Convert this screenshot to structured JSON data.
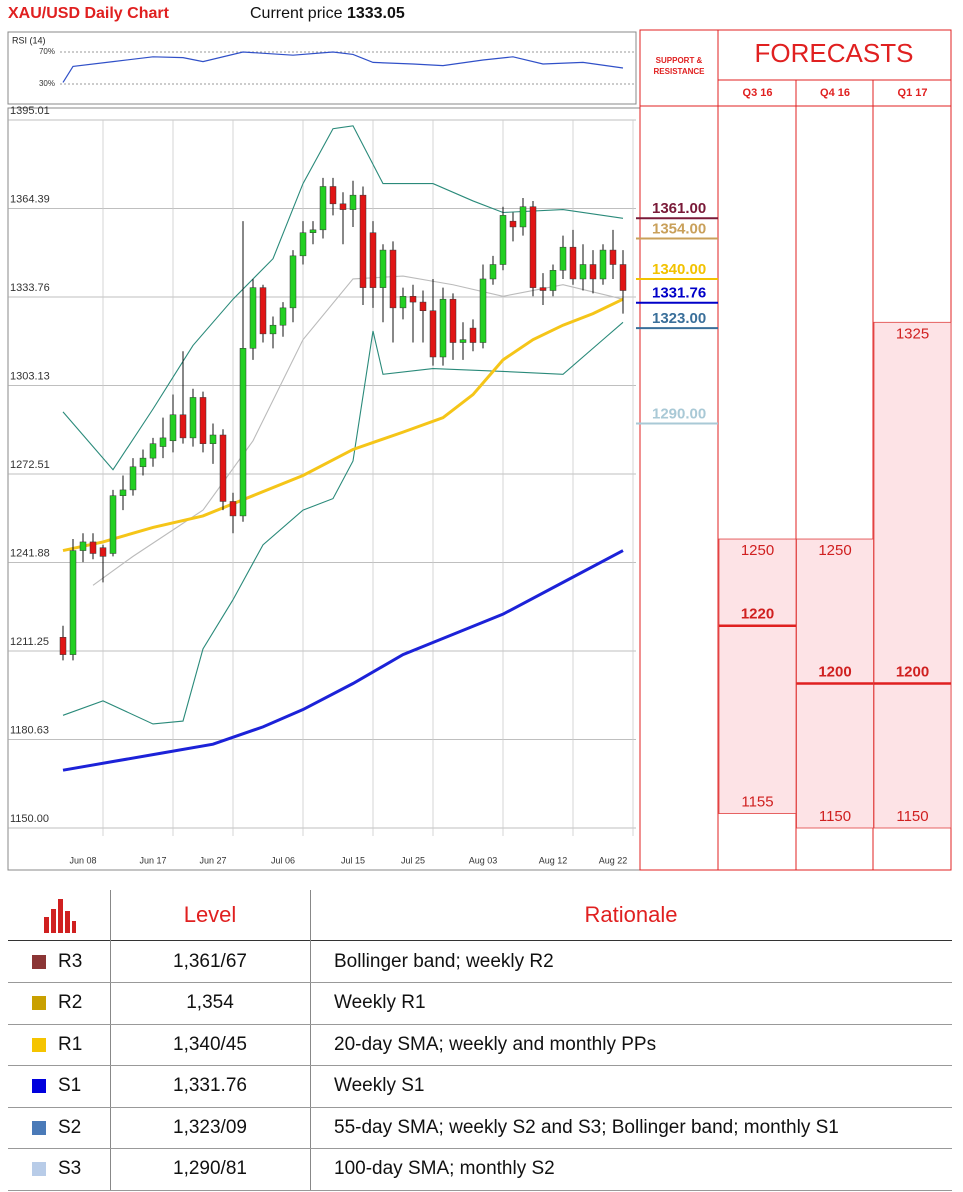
{
  "header": {
    "title": "XAU/USD Daily Chart",
    "price_label": "Current price",
    "price": "1333.05"
  },
  "chart_data": [
    {
      "type": "line",
      "title": "RSI (14)",
      "color": "#3050c8",
      "x": [
        0,
        1,
        5,
        9,
        12,
        14,
        18,
        23,
        27,
        29,
        31,
        35,
        38,
        42,
        45,
        48,
        52,
        56
      ],
      "values": [
        32,
        52,
        58,
        64,
        63,
        58,
        70,
        66,
        70,
        67,
        57,
        55,
        53,
        60,
        64,
        55,
        57,
        50
      ],
      "ylim": [
        10,
        90
      ],
      "yticks": [
        {
          "value": 70,
          "label": "70%"
        },
        {
          "value": 30,
          "label": "30%"
        }
      ]
    },
    {
      "type": "candlestick",
      "categories": [
        null,
        null,
        "Jun 08",
        null,
        null,
        null,
        null,
        null,
        null,
        "Jun 17",
        null,
        null,
        null,
        null,
        null,
        "Jun 27",
        null,
        null,
        null,
        null,
        null,
        null,
        "Jul 06",
        null,
        null,
        null,
        null,
        null,
        null,
        "Jul 15",
        null,
        null,
        null,
        null,
        null,
        "Jul 25",
        null,
        null,
        null,
        null,
        null,
        null,
        "Aug 03",
        null,
        null,
        null,
        null,
        null,
        null,
        "Aug 12",
        null,
        null,
        null,
        null,
        null,
        "Aug 22",
        null
      ],
      "open": [
        1216,
        1210,
        1246,
        1249,
        1247,
        1245,
        1265,
        1267,
        1275,
        1278,
        1282,
        1284,
        1293,
        1285,
        1299,
        1283,
        1286,
        1263,
        1258,
        1316,
        1337,
        1321,
        1324,
        1330,
        1348,
        1356,
        1357,
        1372,
        1366,
        1364,
        1369,
        1356,
        1337,
        1350,
        1330,
        1334,
        1332,
        1329,
        1313,
        1333,
        1318,
        1323,
        1318,
        1340,
        1345,
        1360,
        1358,
        1365,
        1337,
        1336,
        1343,
        1351,
        1340,
        1345,
        1340,
        1350,
        1345
      ],
      "high": [
        1220,
        1250,
        1252,
        1252,
        1248,
        1267,
        1272,
        1278,
        1281,
        1285,
        1292,
        1300,
        1315,
        1302,
        1301,
        1290,
        1288,
        1266,
        1360,
        1340,
        1338,
        1327,
        1332,
        1350,
        1360,
        1360,
        1375,
        1375,
        1370,
        1374,
        1372,
        1360,
        1352,
        1353,
        1337,
        1338,
        1336,
        1340,
        1337,
        1335,
        1325,
        1326,
        1345,
        1348,
        1365,
        1363,
        1368,
        1367,
        1342,
        1345,
        1355,
        1357,
        1352,
        1350,
        1352,
        1357,
        1350
      ],
      "low": [
        1208,
        1208,
        1242,
        1243,
        1235,
        1244,
        1260,
        1265,
        1272,
        1275,
        1278,
        1280,
        1283,
        1282,
        1280,
        1276,
        1260,
        1252,
        1256,
        1312,
        1318,
        1316,
        1320,
        1325,
        1345,
        1352,
        1354,
        1362,
        1352,
        1358,
        1331,
        1330,
        1325,
        1318,
        1326,
        1318,
        1318,
        1310,
        1310,
        1312,
        1312,
        1315,
        1316,
        1338,
        1343,
        1353,
        1355,
        1334,
        1331,
        1334,
        1340,
        1338,
        1336,
        1335,
        1338,
        1340,
        1328
      ],
      "close": [
        1210,
        1246,
        1249,
        1245,
        1244,
        1265,
        1267,
        1275,
        1278,
        1283,
        1285,
        1293,
        1285,
        1299,
        1283,
        1286,
        1263,
        1258,
        1316,
        1337,
        1321,
        1324,
        1330,
        1348,
        1356,
        1357,
        1372,
        1366,
        1364,
        1369,
        1337,
        1337,
        1350,
        1330,
        1334,
        1332,
        1329,
        1313,
        1333,
        1318,
        1319,
        1318,
        1340,
        1345,
        1362,
        1358,
        1365,
        1337,
        1336,
        1343,
        1351,
        1340,
        1345,
        1340,
        1350,
        1345,
        1336
      ],
      "up_color": "#22d022",
      "down_color": "#e01515",
      "lines": [
        {
          "color": "#bbbbbb",
          "x": [
            3,
            7,
            14,
            19,
            24,
            29,
            34,
            39,
            44,
            50,
            56
          ],
          "values": [
            1234,
            1244,
            1260,
            1284,
            1319,
            1340,
            1341,
            1338,
            1334,
            1338,
            1333
          ]
        },
        {
          "color": "#2a8a7a",
          "x": [
            0,
            5,
            9,
            13,
            17,
            21,
            24,
            27,
            29,
            32,
            37,
            41,
            44,
            50,
            56
          ],
          "values": [
            1294,
            1274,
            1295,
            1317,
            1333,
            1347,
            1373,
            1392,
            1393,
            1373,
            1373,
            1367,
            1363,
            1364,
            1361
          ]
        },
        {
          "color": "#2a8a7a",
          "x": [
            0,
            4,
            9,
            12,
            14,
            17,
            20,
            24,
            27,
            29,
            31,
            32,
            37,
            44,
            50,
            54,
            56
          ],
          "values": [
            1189,
            1194,
            1186,
            1187,
            1212,
            1229,
            1248,
            1260,
            1264,
            1277,
            1322,
            1307,
            1309,
            1308,
            1307,
            1319,
            1325
          ]
        },
        {
          "color": "#f5c518",
          "x": [
            0,
            4,
            9,
            14,
            19,
            24,
            29,
            34,
            38,
            41,
            44,
            47,
            50,
            53,
            56
          ],
          "values": [
            1246,
            1249,
            1254,
            1258,
            1265,
            1272,
            1281,
            1287,
            1292,
            1300,
            1312,
            1319,
            1324,
            1328,
            1333
          ]
        },
        {
          "color": "#1c22d8",
          "x": [
            0,
            5,
            10,
            15,
            20,
            24,
            29,
            34,
            39,
            44,
            50,
            56
          ],
          "values": [
            1170,
            1173,
            1176,
            1179,
            1185,
            1191,
            1200,
            1210,
            1217,
            1224,
            1235,
            1246
          ]
        }
      ],
      "ylim": [
        1150,
        1395.01
      ],
      "yticks": [
        {
          "value": 1150,
          "label": "1150.00"
        },
        1180.63,
        1211.25,
        1241.88,
        1272.51,
        1303.13,
        1333.76,
        1364.39,
        1395.01
      ],
      "grid": true
    }
  ],
  "support_resistance": {
    "title_lines": [
      "SUPPORT &",
      "RESISTANCE"
    ],
    "levels": [
      {
        "value": 1361,
        "label": "1361.00",
        "color": "#7a1a38"
      },
      {
        "value": 1354,
        "label": "1354.00",
        "color": "#c9a05a"
      },
      {
        "value": 1340,
        "label": "1340.00",
        "color": "#f2c200"
      },
      {
        "value": 1331.76,
        "label": "1331.76",
        "color": "#0000c8"
      },
      {
        "value": 1323,
        "label": "1323.00",
        "color": "#3a6f9a"
      },
      {
        "value": 1290,
        "label": "1290.00",
        "color": "#a9c9d6"
      }
    ]
  },
  "forecasts": {
    "title": "FORECASTS",
    "columns": [
      {
        "label": "Q3 16",
        "high": 1250,
        "median": 1220,
        "low": 1155
      },
      {
        "label": "Q4 16",
        "high": 1250,
        "median": 1200,
        "low": 1150
      },
      {
        "label": "Q1 17",
        "high": 1325,
        "median": 1200,
        "low": 1150
      }
    ]
  },
  "table": {
    "columns": [
      "Level",
      "Rationale"
    ],
    "rows": [
      {
        "name": "R3",
        "color": "#8b3535",
        "level": "1,361/67",
        "rationale": "Bollinger band; weekly R2"
      },
      {
        "name": "R2",
        "color": "#c9a000",
        "level": "1,354",
        "rationale": "Weekly R1"
      },
      {
        "name": "R1",
        "color": "#f5c400",
        "level": "1,340/45",
        "rationale": "20-day SMA; weekly and monthly PPs"
      },
      {
        "name": "S1",
        "color": "#0000dd",
        "level": "1,331.76",
        "rationale": "Weekly S1"
      },
      {
        "name": "S2",
        "color": "#4a7ab8",
        "level": "1,323/09",
        "rationale": "55-day SMA; weekly S2 and S3; Bollinger band; monthly S1"
      },
      {
        "name": "S3",
        "color": "#b8cce8",
        "level": "1,290/81",
        "rationale": "100-day SMA;  monthly S2"
      }
    ]
  }
}
